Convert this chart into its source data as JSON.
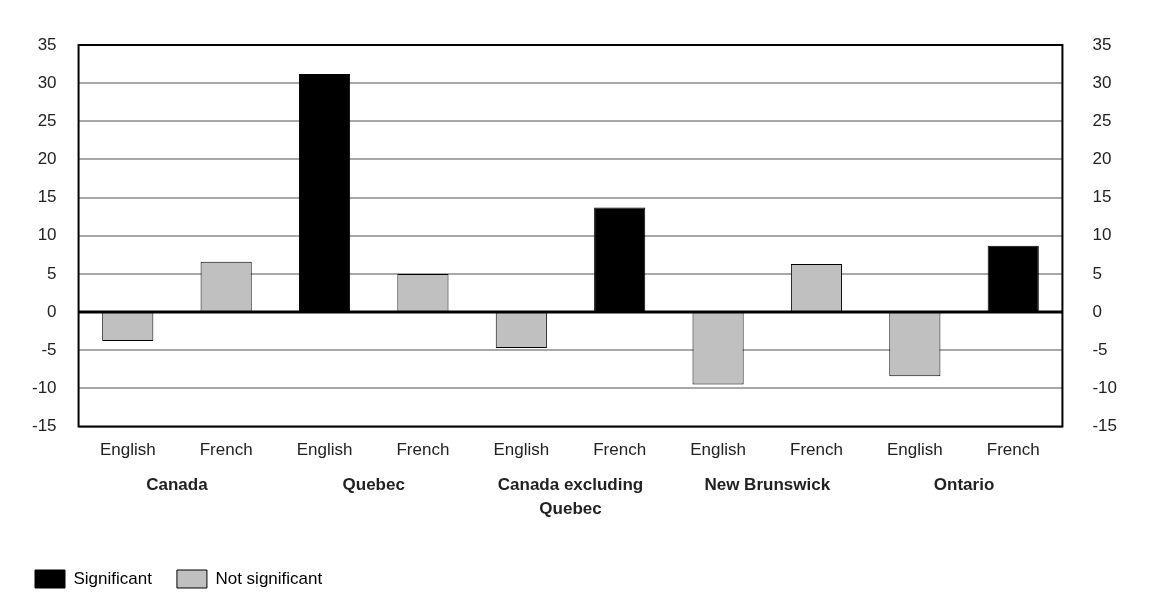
{
  "chart_data": {
    "type": "bar",
    "categories": [
      "English",
      "French",
      "English",
      "French",
      "English",
      "French",
      "English",
      "French",
      "English",
      "French"
    ],
    "series": [
      {
        "name": "Significant",
        "color": "#000000",
        "values": [
          null,
          null,
          31.2,
          null,
          null,
          13.7,
          null,
          null,
          null,
          8.7
        ]
      },
      {
        "name": "Not significant",
        "color": "#c0c0c0",
        "values": [
          -3.8,
          6.6,
          null,
          5.0,
          -4.7,
          null,
          -9.5,
          6.3,
          -8.4,
          null
        ]
      }
    ],
    "annotations": [
      "Canada",
      "Quebec",
      "Canada excluding Quebec",
      "New Brunswick",
      "Ontario"
    ],
    "ylim": [
      -15,
      35
    ],
    "yticks": [
      -15,
      -10,
      -5,
      0,
      5,
      10,
      15,
      20,
      25,
      30,
      35
    ],
    "y2lim": [
      -15,
      35
    ],
    "y2ticks": [
      -15,
      -10,
      -5,
      0,
      5,
      10,
      15,
      20,
      25,
      30,
      35
    ],
    "grid": "y",
    "legend": "bottom left"
  }
}
